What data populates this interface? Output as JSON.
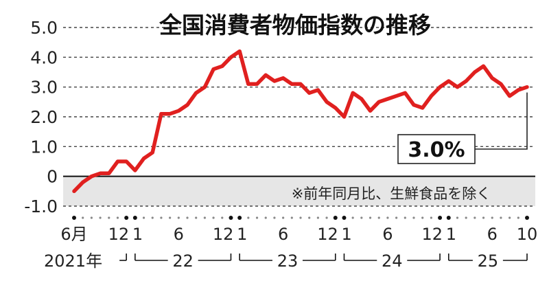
{
  "chart_data": {
    "type": "line",
    "title": "全国消費者物価指数の推移",
    "ylim": [
      -1.0,
      5.0
    ],
    "yticks": [
      "5.0",
      "4.0",
      "3.0",
      "2.0",
      "1.0",
      "0",
      "-1.0"
    ],
    "ytick_values": [
      5.0,
      4.0,
      3.0,
      2.0,
      1.0,
      0,
      -1.0
    ],
    "grid": true,
    "series": [
      {
        "color": "#e0201f",
        "x": [
          "2021-06",
          "2021-07",
          "2021-08",
          "2021-09",
          "2021-10",
          "2021-11",
          "2021-12",
          "2022-01",
          "2022-02",
          "2022-03",
          "2022-04",
          "2022-05",
          "2022-06",
          "2022-07",
          "2022-08",
          "2022-09",
          "2022-10",
          "2022-11",
          "2022-12",
          "2023-01",
          "2023-02",
          "2023-03",
          "2023-04",
          "2023-05",
          "2023-06",
          "2023-07",
          "2023-08",
          "2023-09",
          "2023-10",
          "2023-11",
          "2023-12",
          "2024-01",
          "2024-02",
          "2024-03",
          "2024-04",
          "2024-05",
          "2024-06",
          "2024-07",
          "2024-08",
          "2024-09",
          "2024-10",
          "2024-11",
          "2024-12",
          "2025-01",
          "2025-02",
          "2025-03",
          "2025-04",
          "2025-05",
          "2025-06",
          "2025-07",
          "2025-08",
          "2025-09",
          "2025-10"
        ],
        "values": [
          -0.5,
          -0.2,
          0.0,
          0.1,
          0.1,
          0.5,
          0.5,
          0.2,
          0.6,
          0.8,
          2.1,
          2.1,
          2.2,
          2.4,
          2.8,
          3.0,
          3.6,
          3.7,
          4.0,
          4.2,
          3.1,
          3.1,
          3.4,
          3.2,
          3.3,
          3.1,
          3.1,
          2.8,
          2.9,
          2.5,
          2.3,
          2.0,
          2.8,
          2.6,
          2.2,
          2.5,
          2.6,
          2.7,
          2.8,
          2.4,
          2.3,
          2.7,
          3.0,
          3.2,
          3.0,
          3.2,
          3.5,
          3.7,
          3.3,
          3.1,
          2.7,
          2.9,
          3.0
        ]
      }
    ],
    "month_ticks": [
      {
        "label": "6月",
        "x": "2021-06"
      },
      {
        "label": "12",
        "x": "2021-12"
      },
      {
        "label": "1",
        "x": "2022-01"
      },
      {
        "label": "6",
        "x": "2022-06"
      },
      {
        "label": "12",
        "x": "2022-12"
      },
      {
        "label": "1",
        "x": "2023-01"
      },
      {
        "label": "6",
        "x": "2023-06"
      },
      {
        "label": "12",
        "x": "2023-12"
      },
      {
        "label": "1",
        "x": "2024-01"
      },
      {
        "label": "6",
        "x": "2024-06"
      },
      {
        "label": "12",
        "x": "2024-12"
      },
      {
        "label": "1",
        "x": "2025-01"
      },
      {
        "label": "6",
        "x": "2025-06"
      },
      {
        "label": "10",
        "x": "2025-10"
      }
    ],
    "years": [
      {
        "label": "2021年",
        "start": "2021-06",
        "end": "2021-12"
      },
      {
        "label": "22",
        "start": "2022-01",
        "end": "2022-12"
      },
      {
        "label": "23",
        "start": "2023-01",
        "end": "2023-12"
      },
      {
        "label": "24",
        "start": "2024-01",
        "end": "2024-12"
      },
      {
        "label": "25",
        "start": "2025-01",
        "end": "2025-10"
      }
    ],
    "annotation": "※前年同月比、生鮮食品を除く",
    "callout": {
      "label": "3.0%",
      "x": "2025-10",
      "value": 3.0
    }
  }
}
